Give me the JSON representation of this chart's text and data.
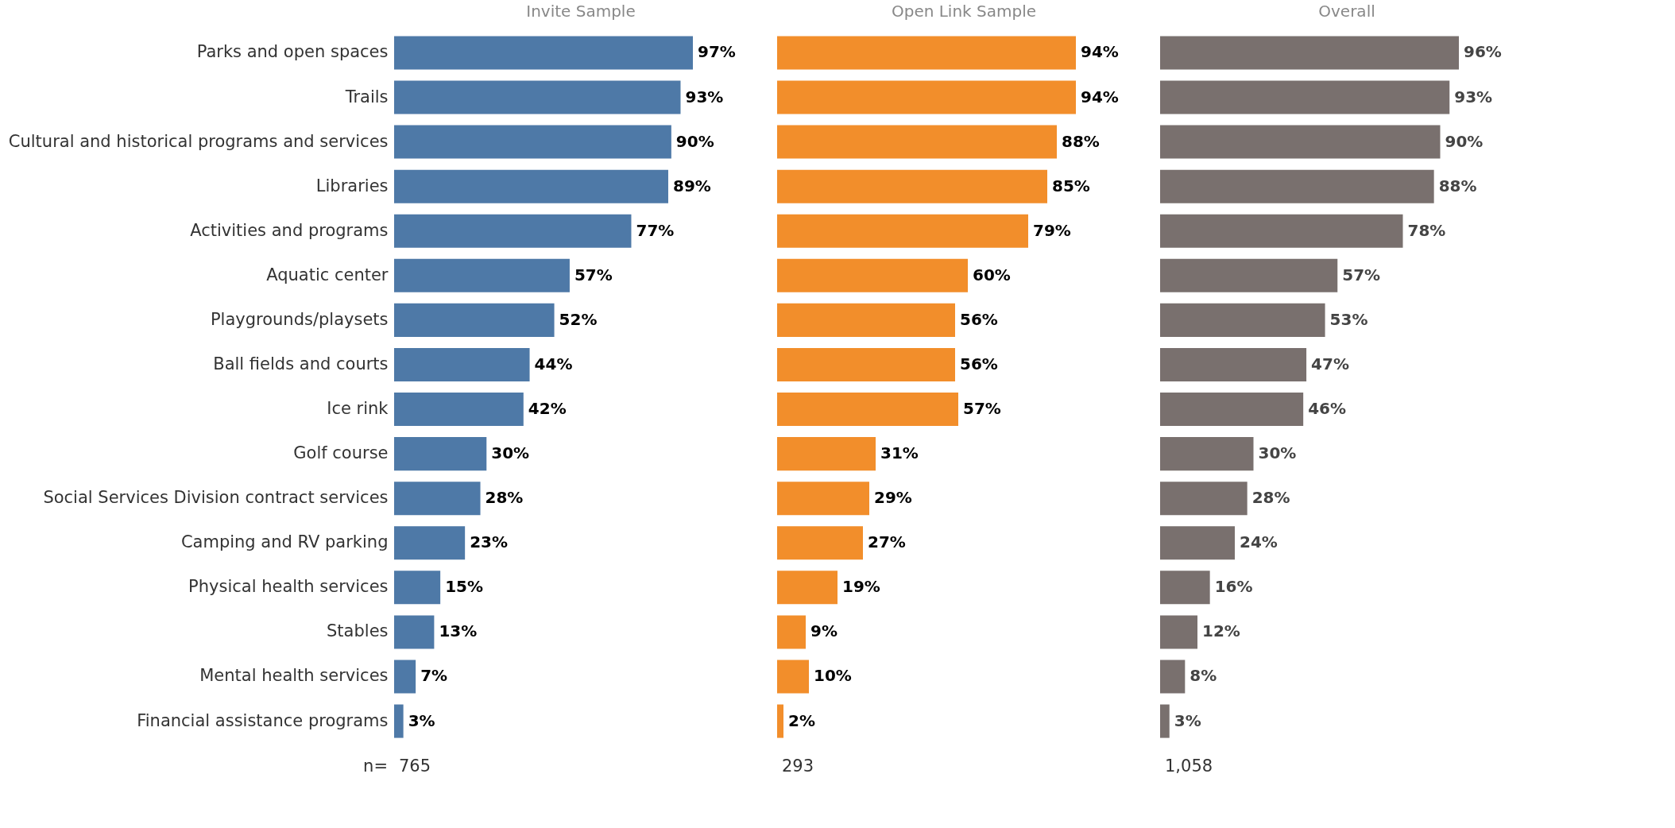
{
  "chart_data": [
    {
      "type": "bar",
      "orientation": "horizontal",
      "title": "Invite Sample",
      "tick_labels": "y",
      "categories": [
        "Parks and open spaces",
        "Trails",
        "Cultural and historical programs and services",
        "Libraries",
        "Activities and programs",
        "Aquatic center",
        "Playgrounds/playsets",
        "Ball fields and courts",
        "Ice rink",
        "Golf course",
        "Social Services Division contract services",
        "Camping and RV parking",
        "Physical health services",
        "Stables",
        "Mental health services",
        "Financial assistance programs"
      ],
      "values": [
        97,
        93,
        90,
        89,
        77,
        57,
        52,
        44,
        42,
        30,
        28,
        23,
        15,
        13,
        7,
        3
      ],
      "value_labels": [
        "97%",
        "93%",
        "90%",
        "89%",
        "77%",
        "57%",
        "52%",
        "44%",
        "42%",
        "30%",
        "28%",
        "23%",
        "15%",
        "13%",
        "7%",
        "3%"
      ],
      "color": "#4e79a7",
      "annotations": [
        "n=",
        "765"
      ]
    },
    {
      "type": "bar",
      "orientation": "horizontal",
      "title": "Open Link Sample",
      "tick_labels": false,
      "categories": [
        "Parks and open spaces",
        "Trails",
        "Cultural and historical programs and services",
        "Libraries",
        "Activities and programs",
        "Aquatic center",
        "Playgrounds/playsets",
        "Ball fields and courts",
        "Ice rink",
        "Golf course",
        "Social Services Division contract services",
        "Camping and RV parking",
        "Physical health services",
        "Stables",
        "Mental health services",
        "Financial assistance programs"
      ],
      "values": [
        94,
        94,
        88,
        85,
        79,
        60,
        56,
        56,
        57,
        31,
        29,
        27,
        19,
        9,
        10,
        2
      ],
      "value_labels": [
        "94%",
        "94%",
        "88%",
        "85%",
        "79%",
        "60%",
        "56%",
        "56%",
        "57%",
        "31%",
        "29%",
        "27%",
        "19%",
        "9%",
        "10%",
        "2%"
      ],
      "color": "#f28e2b",
      "annotations": [
        "293"
      ]
    },
    {
      "type": "bar",
      "orientation": "horizontal",
      "title": "Overall",
      "tick_labels": false,
      "categories": [
        "Parks and open spaces",
        "Trails",
        "Cultural and historical programs and services",
        "Libraries",
        "Activities and programs",
        "Aquatic center",
        "Playgrounds/playsets",
        "Ball fields and courts",
        "Ice rink",
        "Golf course",
        "Social Services Division contract services",
        "Camping and RV parking",
        "Physical health services",
        "Stables",
        "Mental health services",
        "Financial assistance programs"
      ],
      "values": [
        96,
        93,
        90,
        88,
        78,
        57,
        53,
        47,
        46,
        30,
        28,
        24,
        16,
        12,
        8,
        3
      ],
      "value_labels": [
        "96%",
        "93%",
        "90%",
        "88%",
        "78%",
        "57%",
        "53%",
        "47%",
        "46%",
        "30%",
        "28%",
        "24%",
        "16%",
        "12%",
        "8%",
        "3%"
      ],
      "color": "#79706e",
      "annotations": [
        "1,058"
      ]
    }
  ]
}
